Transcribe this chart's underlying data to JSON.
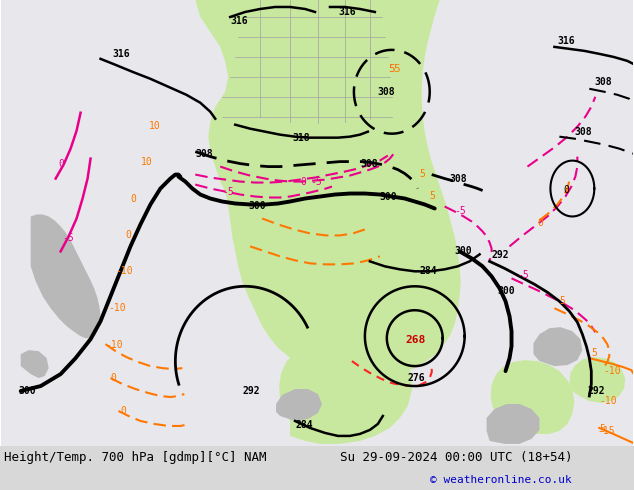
{
  "title_left": "Height/Temp. 700 hPa [gdmp][°C] NAM",
  "title_right": "Su 29-09-2024 00:00 UTC (18+54)",
  "copyright": "© weatheronline.co.uk",
  "bg_color": "#e8e8ec",
  "green_color": "#c8e8a0",
  "gray_color": "#b8b8b8",
  "fig_width": 6.34,
  "fig_height": 4.9,
  "dpi": 100
}
